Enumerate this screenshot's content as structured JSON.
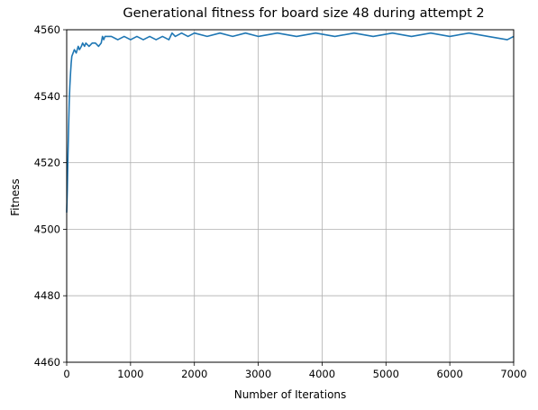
{
  "chart_data": {
    "type": "line",
    "title": "Generational fitness for board size 48 during attempt 2",
    "xlabel": "Number of Iterations",
    "ylabel": "Fitness",
    "xlim": [
      0,
      7000
    ],
    "ylim": [
      4460,
      4560
    ],
    "xticks": [
      0,
      1000,
      2000,
      3000,
      4000,
      5000,
      6000,
      7000
    ],
    "yticks": [
      4460,
      4480,
      4500,
      4520,
      4540,
      4560
    ],
    "xtick_labels": [
      "0",
      "1000",
      "2000",
      "3000",
      "4000",
      "5000",
      "6000",
      "7000"
    ],
    "ytick_labels": [
      "4460",
      "4480",
      "4500",
      "4520",
      "4540",
      "4560"
    ],
    "grid": true,
    "series": [
      {
        "color": "#1f77b4",
        "x": [
          0,
          10,
          20,
          30,
          40,
          50,
          60,
          70,
          80,
          100,
          120,
          150,
          180,
          200,
          230,
          250,
          280,
          300,
          350,
          400,
          450,
          500,
          540,
          560,
          580,
          600,
          700,
          800,
          900,
          1000,
          1100,
          1200,
          1300,
          1400,
          1500,
          1600,
          1650,
          1700,
          1800,
          1900,
          2000,
          2200,
          2400,
          2600,
          2800,
          3000,
          3300,
          3600,
          3900,
          4200,
          4500,
          4800,
          5100,
          5400,
          5700,
          6000,
          6300,
          6600,
          6900,
          7000
        ],
        "y": [
          4505,
          4512,
          4522,
          4530,
          4538,
          4543,
          4547,
          4550,
          4552,
          4553,
          4554,
          4553,
          4555,
          4554,
          4555,
          4556,
          4555,
          4556,
          4555,
          4556,
          4556,
          4555,
          4556,
          4558,
          4557,
          4558,
          4558,
          4557,
          4558,
          4557,
          4558,
          4557,
          4558,
          4557,
          4558,
          4557,
          4559,
          4558,
          4559,
          4558,
          4559,
          4558,
          4559,
          4558,
          4559,
          4558,
          4559,
          4558,
          4559,
          4558,
          4559,
          4558,
          4559,
          4558,
          4559,
          4558,
          4559,
          4558,
          4557,
          4558
        ]
      }
    ]
  }
}
